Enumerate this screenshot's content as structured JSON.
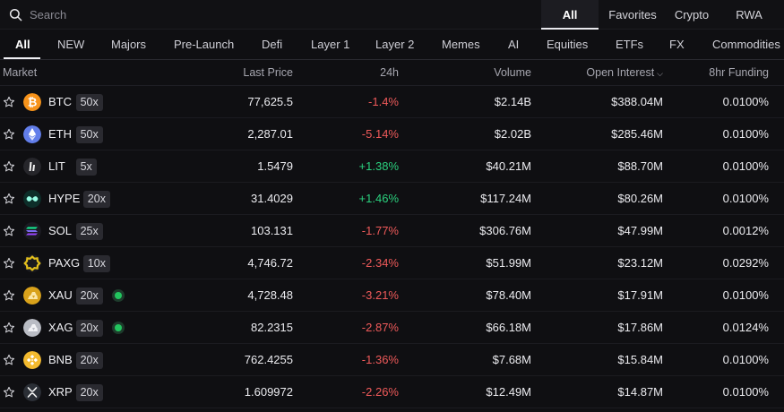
{
  "search": {
    "placeholder": "Search"
  },
  "filter_tabs": [
    {
      "label": "All",
      "active": true
    },
    {
      "label": "Favorites",
      "active": false
    },
    {
      "label": "Crypto",
      "active": false
    },
    {
      "label": "RWA",
      "active": false
    }
  ],
  "categories": [
    "All",
    "NEW",
    "Majors",
    "Pre-Launch",
    "Defi",
    "Layer 1",
    "Layer 2",
    "Memes",
    "AI",
    "Equities",
    "ETFs",
    "FX",
    "Commodities"
  ],
  "columns": {
    "market": "Market",
    "last_price": "Last Price",
    "change_24h": "24h",
    "volume": "Volume",
    "open_interest": "Open Interest",
    "funding": "8hr Funding"
  },
  "colors": {
    "negative": "#ef5a5a",
    "positive": "#2bd17e",
    "live": "#22c55e"
  },
  "markets": [
    {
      "symbol": "BTC",
      "leverage": "50x",
      "live": false,
      "price": "77,625.5",
      "change": "-1.4%",
      "direction": "neg",
      "volume": "$2.14B",
      "open_interest": "$388.04M",
      "funding": "0.0100%",
      "icon": "btc-icon",
      "color": "#f7931a"
    },
    {
      "symbol": "ETH",
      "leverage": "50x",
      "live": false,
      "price": "2,287.01",
      "change": "-5.14%",
      "direction": "neg",
      "volume": "$2.02B",
      "open_interest": "$285.46M",
      "funding": "0.0100%",
      "icon": "eth-icon",
      "color": "#627eea"
    },
    {
      "symbol": "LIT",
      "leverage": "5x",
      "live": false,
      "price": "1.5479",
      "change": "+1.38%",
      "direction": "pos",
      "volume": "$40.21M",
      "open_interest": "$88.70M",
      "funding": "0.0100%",
      "icon": "lit-icon",
      "color": "#1c1c1f"
    },
    {
      "symbol": "HYPE",
      "leverage": "20x",
      "live": false,
      "price": "31.4029",
      "change": "+1.46%",
      "direction": "pos",
      "volume": "$117.24M",
      "open_interest": "$80.26M",
      "funding": "0.0100%",
      "icon": "hype-icon",
      "color": "#0b2a26"
    },
    {
      "symbol": "SOL",
      "leverage": "25x",
      "live": false,
      "price": "103.131",
      "change": "-1.77%",
      "direction": "neg",
      "volume": "$306.76M",
      "open_interest": "$47.99M",
      "funding": "0.0012%",
      "icon": "sol-icon",
      "color": "#14f195"
    },
    {
      "symbol": "PAXG",
      "leverage": "10x",
      "live": false,
      "price": "4,746.72",
      "change": "-2.34%",
      "direction": "neg",
      "volume": "$51.99M",
      "open_interest": "$23.12M",
      "funding": "0.0292%",
      "icon": "paxg-icon",
      "color": "#e4c01c"
    },
    {
      "symbol": "XAU",
      "leverage": "20x",
      "live": true,
      "price": "4,728.48",
      "change": "-3.21%",
      "direction": "neg",
      "volume": "$78.40M",
      "open_interest": "$17.91M",
      "funding": "0.0100%",
      "icon": "xau-icon",
      "color": "#d9a21b"
    },
    {
      "symbol": "XAG",
      "leverage": "20x",
      "live": true,
      "price": "82.2315",
      "change": "-2.87%",
      "direction": "neg",
      "volume": "$66.18M",
      "open_interest": "$17.86M",
      "funding": "0.0124%",
      "icon": "xag-icon",
      "color": "#b9bcc4"
    },
    {
      "symbol": "BNB",
      "leverage": "20x",
      "live": false,
      "price": "762.4255",
      "change": "-1.36%",
      "direction": "neg",
      "volume": "$7.68M",
      "open_interest": "$15.84M",
      "funding": "0.0100%",
      "icon": "bnb-icon",
      "color": "#f3ba2f"
    },
    {
      "symbol": "XRP",
      "leverage": "20x",
      "live": false,
      "price": "1.609972",
      "change": "-2.26%",
      "direction": "neg",
      "volume": "$12.49M",
      "open_interest": "$14.87M",
      "funding": "0.0100%",
      "icon": "xrp-icon",
      "color": "#23292f"
    }
  ]
}
